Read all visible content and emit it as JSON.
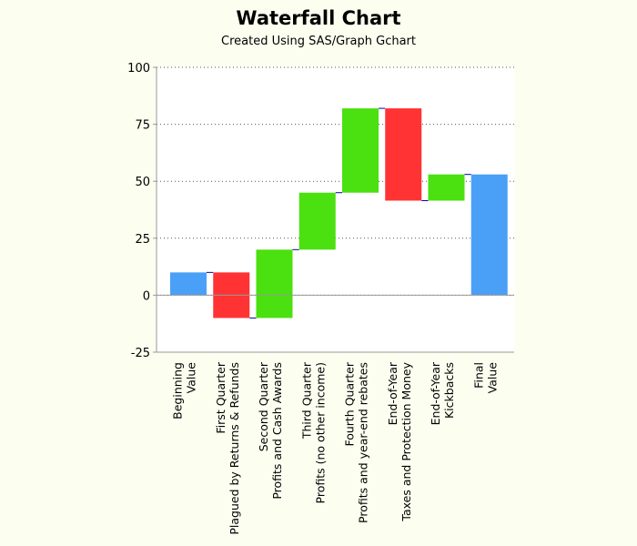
{
  "chart_data": {
    "type": "bar",
    "subtype": "waterfall",
    "title": "Waterfall Chart",
    "subtitle": "Created Using SAS/Graph Gchart",
    "xlabel": "",
    "ylabel": "",
    "ylim": [
      -25,
      100
    ],
    "yticks": [
      -25,
      0,
      25,
      50,
      75,
      100
    ],
    "grid": "horizontal-dotted",
    "legend": "none",
    "bars": [
      {
        "label_lines": [
          "Beginning",
          "Value"
        ],
        "start": 0,
        "end": 10,
        "kind": "total"
      },
      {
        "label_lines": [
          "First Quarter",
          "Plagued by Returns & Refunds"
        ],
        "start": 10,
        "end": -10,
        "kind": "decrease"
      },
      {
        "label_lines": [
          "Second Quarter",
          "Profits and Cash Awards"
        ],
        "start": -10,
        "end": 20,
        "kind": "increase"
      },
      {
        "label_lines": [
          "Third Quarter",
          "Profits (no other income)"
        ],
        "start": 20,
        "end": 45,
        "kind": "increase"
      },
      {
        "label_lines": [
          "Fourth Quarter",
          "Profits and year-end rebates"
        ],
        "start": 45,
        "end": 82,
        "kind": "increase"
      },
      {
        "label_lines": [
          "End-of-Year",
          "Taxes and Protection Money"
        ],
        "start": 82,
        "end": 41.5,
        "kind": "decrease"
      },
      {
        "label_lines": [
          "End-of-Year",
          "Kickbacks"
        ],
        "start": 41.5,
        "end": 53,
        "kind": "increase"
      },
      {
        "label_lines": [
          "Final",
          "Value"
        ],
        "start": 0,
        "end": 53,
        "kind": "total"
      }
    ]
  },
  "colors": {
    "total": "#4a9ff7",
    "increase": "#4be010",
    "decrease": "#ff3333",
    "connector": "#0000aa",
    "axis": "#999999",
    "grid": "#555555",
    "plot_bg": "#ffffff",
    "page_bg": "#fcfff0"
  }
}
